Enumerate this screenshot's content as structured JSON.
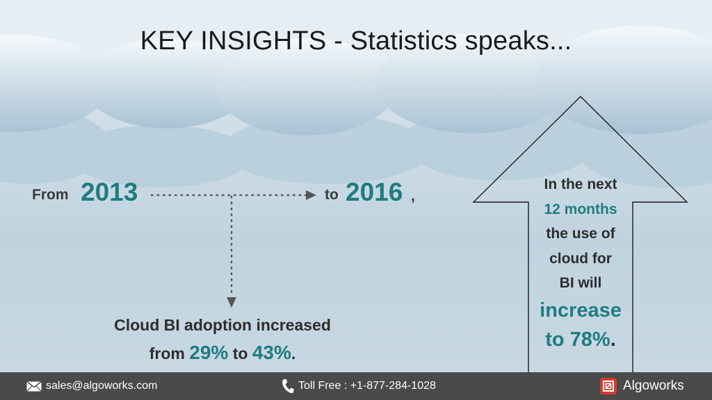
{
  "title": "KEY INSIGHTS - Statistics speaks...",
  "timeline": {
    "from_label": "From",
    "from_year": "2013",
    "to_label": "to",
    "to_year": "2016",
    "to_suffix": ","
  },
  "stat": {
    "line1": "Cloud BI adoption increased",
    "from_word": "from",
    "from_pct": "29%",
    "to_word": "to",
    "to_pct": "43%",
    "period": "."
  },
  "callout": {
    "line1": "In the next",
    "line2": "12 months",
    "line3": "the use of",
    "line4": "cloud for",
    "line5": "BI will",
    "line6": "increase",
    "line7": "to 78%",
    "period": "."
  },
  "footer": {
    "email": "sales@algoworks.com",
    "phone": "Toll Free : +1-877-284-1028",
    "brand": "Algoworks"
  },
  "colors": {
    "accent": "#1f7c80",
    "footer_bg": "#4a4a4a",
    "brand_red": "#d23b32"
  },
  "icons": [
    "mail-icon",
    "phone-icon",
    "algoworks-logo-icon"
  ]
}
